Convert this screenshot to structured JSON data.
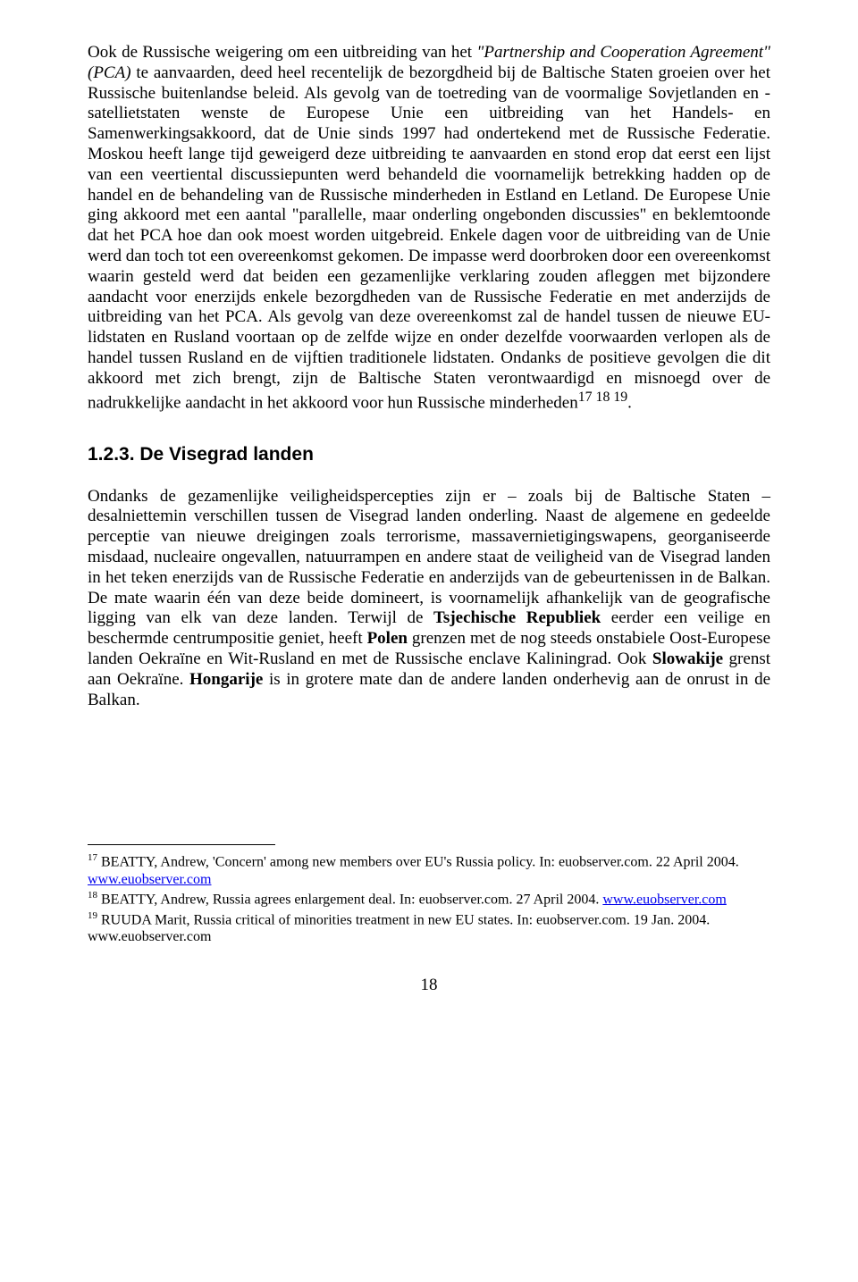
{
  "para1_pre": "Ook de Russische weigering om een uitbreiding van het ",
  "para1_italic": "\"Partnership and Cooperation Agreement\" (PCA)",
  "para1_post": " te aanvaarden, deed heel recentelijk de bezorgdheid bij de Baltische Staten groeien over het Russische buitenlandse beleid. Als gevolg van de toetreding van de voormalige Sovjetlanden en -satellietstaten wenste de Europese Unie een uitbreiding van het Handels- en Samenwerkingsakkoord, dat de Unie sinds 1997 had ondertekend met de Russische Federatie. Moskou heeft lange tijd geweigerd deze uitbreiding te aanvaarden en stond erop dat eerst een lijst van een veertiental discussiepunten werd behandeld die voornamelijk betrekking hadden op de handel en de behandeling van de Russische minderheden in Estland en Letland. De Europese Unie ging akkoord met een aantal \"parallelle, maar onderling ongebonden discussies\" en beklemtoonde dat het PCA hoe dan ook moest worden uitgebreid. Enkele dagen voor de uitbreiding van de Unie werd dan toch tot een overeenkomst gekomen. De impasse werd doorbroken door een overeenkomst waarin gesteld werd dat beiden een gezamenlijke verklaring zouden afleggen met bijzondere aandacht voor enerzijds enkele bezorgdheden van de Russische Federatie en met anderzijds de uitbreiding van het PCA. Als gevolg van deze overeenkomst zal de handel tussen de nieuwe EU-lidstaten en Rusland voortaan op de zelfde wijze en onder dezelfde voorwaarden verlopen als de handel tussen Rusland en de vijftien traditionele lidstaten. Ondanks de positieve gevolgen die dit akkoord met zich brengt, zijn de Baltische Staten verontwaardigd en misnoegd over de nadrukkelijke aandacht in het akkoord voor hun Russische minderheden",
  "para1_sup": "17 18 19",
  "para1_end": ".",
  "heading": "1.2.3. De Visegrad landen",
  "p2a": "Ondanks de gezamenlijke veiligheidspercepties zijn er – zoals bij de Baltische Staten – desalniettemin verschillen tussen de Visegrad landen onderling. Naast de algemene en gedeelde perceptie van nieuwe dreigingen zoals terrorisme, massavernietigingswapens, georganiseerde misdaad, nucleaire ongevallen, natuurrampen en andere staat de veiligheid van de Visegrad landen in het teken enerzijds van de Russische Federatie en anderzijds van de gebeurtenissen in de Balkan. De mate waarin één van deze beide domineert, is voornamelijk afhankelijk van de geografische ligging van elk van deze landen. Terwijl de ",
  "p2b1": "Tsjechische Republiek",
  "p2c": " eerder een veilige en beschermde centrumpositie geniet, heeft ",
  "p2b2": "Polen",
  "p2d": " grenzen met de nog steeds onstabiele Oost-Europese landen Oekraïne en Wit-Rusland en met de Russische enclave Kaliningrad. Ook ",
  "p2b3": "Slowakije",
  "p2e": " grenst aan Oekraïne. ",
  "p2b4": "Hongarije",
  "p2f": " is in grotere mate dan de andere landen onderhevig aan de onrust in de Balkan.",
  "fn17a": " BEATTY, Andrew, 'Concern' among new members over EU's Russia policy. In: euobserver.com. 22 April 2004. ",
  "fn_link": "www.euobserver.com",
  "fn18a": " BEATTY, Andrew, Russia agrees enlargement deal. In: euobserver.com. 27 April 2004. ",
  "fn19a": " RUUDA Marit, Russia critical of minorities treatment in new EU states. In: euobserver.com. 19 Jan. 2004. www.euobserver.com",
  "sup17": "17",
  "sup18": "18",
  "sup19": "19",
  "pagenum": "18"
}
